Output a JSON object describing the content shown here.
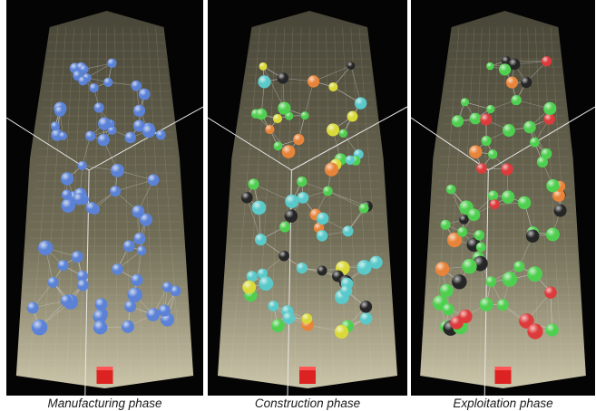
{
  "panels": [
    {
      "caption": "Manufacturing phase"
    },
    {
      "caption": "Construction phase"
    },
    {
      "caption": "Exploitation phase"
    }
  ],
  "colors": {
    "background": "#040404",
    "tower_fill": "#c9c29a",
    "grid_line": "#e8e2c0",
    "edge_line": "#dcdcdc",
    "node_blue": "#5b82d6",
    "node_cyan": "#59c9c9",
    "node_green": "#4fcf4f",
    "node_yellow": "#d9d93a",
    "node_orange": "#e8843a",
    "node_red": "#dd3b3b",
    "node_dark": "#262626",
    "base_marker": "#dd2222"
  }
}
